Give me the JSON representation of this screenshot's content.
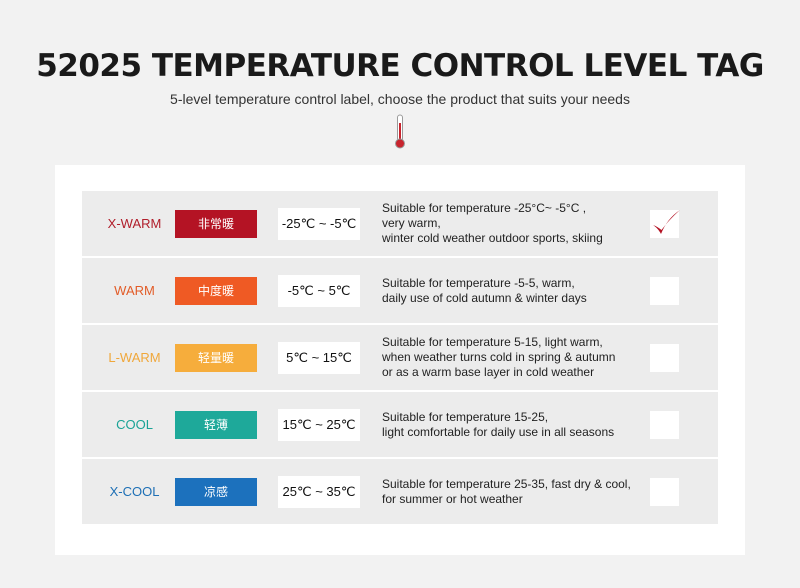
{
  "header": {
    "title": "52025 TEMPERATURE CONTROL LEVEL TAG",
    "subtitle": "5-level temperature control label, choose the product that suits your needs"
  },
  "icons": {
    "header_icon": "thermometer-icon",
    "selected_icon": "checkmark-icon"
  },
  "levels": [
    {
      "name": "X-WARM",
      "name_color": "#b01d2a",
      "badge": "非常暖",
      "badge_color": "#b41324",
      "range": "-25℃ ~ -5℃",
      "desc": [
        "Suitable for temperature -25°C~ -5°C ,",
        "very warm,",
        "winter cold weather outdoor sports, skiing"
      ],
      "selected": true
    },
    {
      "name": "WARM",
      "name_color": "#e25c28",
      "badge": "中度暖",
      "badge_color": "#ef5a24",
      "range": "-5℃ ~ 5℃",
      "desc": [
        "Suitable for temperature -5-5, warm,",
        "daily use of cold autumn & winter days"
      ],
      "selected": false
    },
    {
      "name": "L-WARM",
      "name_color": "#f0a73a",
      "badge": "轻量暖",
      "badge_color": "#f6ad3c",
      "range": "5℃ ~ 15℃",
      "desc": [
        "Suitable for temperature 5-15, light warm,",
        "when weather turns cold in spring & autumn",
        "or as a warm base layer in cold weather"
      ],
      "selected": false
    },
    {
      "name": "COOL",
      "name_color": "#1aa396",
      "badge": "轻薄",
      "badge_color": "#1ea99a",
      "range": "15℃ ~ 25℃",
      "desc": [
        "Suitable for temperature 15-25,",
        "light  comfortable for daily use in all seasons"
      ],
      "selected": false
    },
    {
      "name": "X-COOL",
      "name_color": "#1d6fb5",
      "badge": "凉感",
      "badge_color": "#1c71bd",
      "range": "25℃ ~ 35℃",
      "desc": [
        "Suitable for temperature 25-35, fast dry & cool,",
        "for summer or hot weather"
      ],
      "selected": false
    }
  ]
}
